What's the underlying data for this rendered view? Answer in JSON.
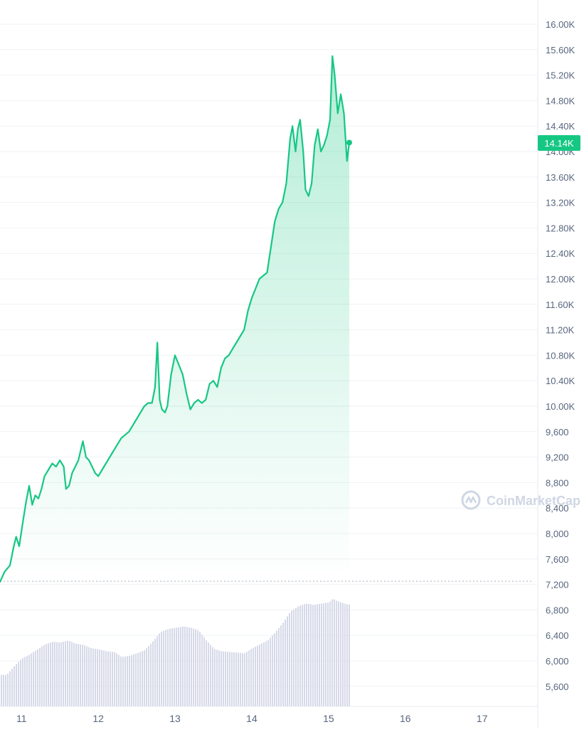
{
  "watermark": {
    "text": "CoinMarketCap",
    "icon": "coinmarketcap-logo-icon"
  },
  "price_badge": {
    "label": "14.14K",
    "value": 14140
  },
  "colors": {
    "line": "#16c784",
    "badge_bg": "#16c784",
    "badge_text": "#ffffff",
    "axis_text": "#58667e",
    "grid": "#eff2f5",
    "volume": "#d6d9e8",
    "watermark": "#cfd6e4"
  },
  "chart_data": {
    "type": "area",
    "title": "",
    "xlabel": "",
    "ylabel": "",
    "grid": true,
    "y_tick_labels": [
      "16.00K",
      "15.60K",
      "15.20K",
      "14.80K",
      "14.40K",
      "14.00K",
      "13.60K",
      "13.20K",
      "12.80K",
      "12.40K",
      "12.00K",
      "11.60K",
      "11.20K",
      "10.80K",
      "10.40K",
      "10.00K",
      "9,600",
      "9,200",
      "8,800",
      "8,400",
      "8,000",
      "7,600",
      "7,200",
      "6,800",
      "6,400",
      "6,000",
      "5,600"
    ],
    "y_tick_values": [
      16000,
      15600,
      15200,
      14800,
      14400,
      14000,
      13600,
      13200,
      12800,
      12400,
      12000,
      11600,
      11200,
      10800,
      10400,
      10000,
      9600,
      9200,
      8800,
      8400,
      8000,
      7600,
      7200,
      6800,
      6400,
      6000,
      5600
    ],
    "x_tick_labels": [
      "11",
      "12",
      "13",
      "14",
      "15",
      "16",
      "17"
    ],
    "x_tick_values": [
      11,
      12,
      13,
      14,
      15,
      16,
      17
    ],
    "price_ylim": [
      7200,
      16000
    ],
    "baseline_value": 7250,
    "xlim": [
      10.72,
      17.67
    ],
    "series": [
      {
        "kind": "price",
        "points": [
          [
            10.72,
            7240
          ],
          [
            10.78,
            7400
          ],
          [
            10.85,
            7500
          ],
          [
            10.9,
            7800
          ],
          [
            10.93,
            7950
          ],
          [
            10.97,
            7800
          ],
          [
            11.02,
            8200
          ],
          [
            11.06,
            8500
          ],
          [
            11.1,
            8750
          ],
          [
            11.14,
            8450
          ],
          [
            11.18,
            8600
          ],
          [
            11.22,
            8550
          ],
          [
            11.26,
            8700
          ],
          [
            11.3,
            8900
          ],
          [
            11.35,
            9000
          ],
          [
            11.4,
            9100
          ],
          [
            11.45,
            9050
          ],
          [
            11.5,
            9150
          ],
          [
            11.55,
            9050
          ],
          [
            11.58,
            8700
          ],
          [
            11.62,
            8750
          ],
          [
            11.66,
            8950
          ],
          [
            11.7,
            9050
          ],
          [
            11.74,
            9150
          ],
          [
            11.78,
            9350
          ],
          [
            11.8,
            9450
          ],
          [
            11.84,
            9200
          ],
          [
            11.88,
            9150
          ],
          [
            11.92,
            9050
          ],
          [
            11.96,
            8950
          ],
          [
            12.0,
            8900
          ],
          [
            12.05,
            9000
          ],
          [
            12.1,
            9100
          ],
          [
            12.15,
            9200
          ],
          [
            12.2,
            9300
          ],
          [
            12.25,
            9400
          ],
          [
            12.3,
            9500
          ],
          [
            12.35,
            9550
          ],
          [
            12.4,
            9600
          ],
          [
            12.45,
            9700
          ],
          [
            12.5,
            9800
          ],
          [
            12.55,
            9900
          ],
          [
            12.6,
            10000
          ],
          [
            12.65,
            10050
          ],
          [
            12.7,
            10050
          ],
          [
            12.74,
            10300
          ],
          [
            12.77,
            11000
          ],
          [
            12.8,
            10100
          ],
          [
            12.83,
            9950
          ],
          [
            12.87,
            9900
          ],
          [
            12.9,
            10000
          ],
          [
            12.95,
            10500
          ],
          [
            13.0,
            10800
          ],
          [
            13.05,
            10650
          ],
          [
            13.1,
            10500
          ],
          [
            13.15,
            10200
          ],
          [
            13.2,
            9950
          ],
          [
            13.25,
            10050
          ],
          [
            13.3,
            10100
          ],
          [
            13.35,
            10050
          ],
          [
            13.4,
            10100
          ],
          [
            13.45,
            10350
          ],
          [
            13.5,
            10400
          ],
          [
            13.55,
            10300
          ],
          [
            13.6,
            10600
          ],
          [
            13.65,
            10750
          ],
          [
            13.7,
            10800
          ],
          [
            13.75,
            10900
          ],
          [
            13.8,
            11000
          ],
          [
            13.85,
            11100
          ],
          [
            13.9,
            11200
          ],
          [
            13.95,
            11500
          ],
          [
            14.0,
            11700
          ],
          [
            14.05,
            11850
          ],
          [
            14.1,
            12000
          ],
          [
            14.15,
            12050
          ],
          [
            14.2,
            12100
          ],
          [
            14.25,
            12500
          ],
          [
            14.3,
            12900
          ],
          [
            14.35,
            13100
          ],
          [
            14.4,
            13200
          ],
          [
            14.45,
            13500
          ],
          [
            14.5,
            14200
          ],
          [
            14.53,
            14400
          ],
          [
            14.57,
            14000
          ],
          [
            14.6,
            14350
          ],
          [
            14.63,
            14500
          ],
          [
            14.67,
            14000
          ],
          [
            14.7,
            13400
          ],
          [
            14.74,
            13300
          ],
          [
            14.78,
            13500
          ],
          [
            14.82,
            14100
          ],
          [
            14.86,
            14350
          ],
          [
            14.9,
            14000
          ],
          [
            14.94,
            14100
          ],
          [
            14.98,
            14250
          ],
          [
            15.02,
            14500
          ],
          [
            15.05,
            15500
          ],
          [
            15.08,
            15200
          ],
          [
            15.12,
            14600
          ],
          [
            15.16,
            14900
          ],
          [
            15.2,
            14600
          ],
          [
            15.24,
            13850
          ],
          [
            15.27,
            14140
          ]
        ]
      },
      {
        "kind": "volume",
        "points": [
          [
            10.72,
            5780
          ],
          [
            10.8,
            5780
          ],
          [
            10.9,
            5920
          ],
          [
            11.0,
            6040
          ],
          [
            11.1,
            6100
          ],
          [
            11.2,
            6180
          ],
          [
            11.3,
            6260
          ],
          [
            11.4,
            6300
          ],
          [
            11.5,
            6290
          ],
          [
            11.6,
            6320
          ],
          [
            11.7,
            6270
          ],
          [
            11.8,
            6250
          ],
          [
            11.9,
            6200
          ],
          [
            12.0,
            6180
          ],
          [
            12.1,
            6150
          ],
          [
            12.2,
            6140
          ],
          [
            12.3,
            6060
          ],
          [
            12.4,
            6080
          ],
          [
            12.5,
            6120
          ],
          [
            12.6,
            6170
          ],
          [
            12.7,
            6300
          ],
          [
            12.8,
            6450
          ],
          [
            12.9,
            6500
          ],
          [
            13.0,
            6520
          ],
          [
            13.1,
            6540
          ],
          [
            13.2,
            6520
          ],
          [
            13.3,
            6480
          ],
          [
            13.4,
            6320
          ],
          [
            13.5,
            6190
          ],
          [
            13.6,
            6150
          ],
          [
            13.7,
            6140
          ],
          [
            13.8,
            6130
          ],
          [
            13.9,
            6120
          ],
          [
            14.0,
            6200
          ],
          [
            14.1,
            6260
          ],
          [
            14.2,
            6320
          ],
          [
            14.3,
            6450
          ],
          [
            14.4,
            6600
          ],
          [
            14.5,
            6780
          ],
          [
            14.6,
            6860
          ],
          [
            14.7,
            6900
          ],
          [
            14.8,
            6880
          ],
          [
            14.9,
            6900
          ],
          [
            15.0,
            6920
          ],
          [
            15.05,
            6980
          ],
          [
            15.1,
            6940
          ],
          [
            15.2,
            6900
          ],
          [
            15.27,
            6880
          ]
        ]
      }
    ]
  }
}
